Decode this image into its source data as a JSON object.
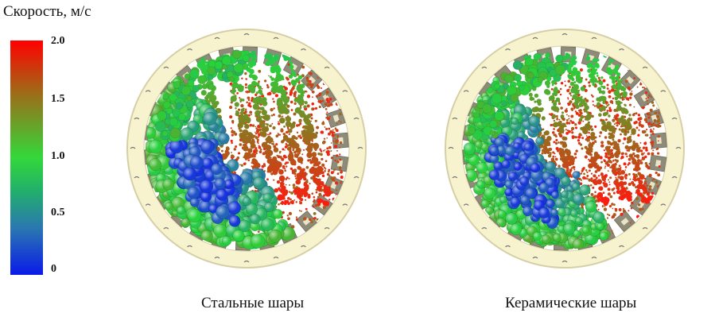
{
  "legend": {
    "title": "Скорость, м/с",
    "ticks": [
      "2.0",
      "1.5",
      "1.0",
      "0.5",
      "0"
    ],
    "gradient_colors": [
      "#ff0000",
      "#a06a18",
      "#33d83a",
      "#2a78b0",
      "#0a1ae8"
    ]
  },
  "panels": [
    {
      "caption": "Стальные шары"
    },
    {
      "caption": "Керамические шары"
    }
  ],
  "colors": {
    "ring": "#f8f3cf",
    "ring_edge": "#d6cfa6",
    "lifter": "#8e8b78",
    "fast": "#ff1a10",
    "slow": "#1a40e0",
    "mid": "#2ad040"
  }
}
